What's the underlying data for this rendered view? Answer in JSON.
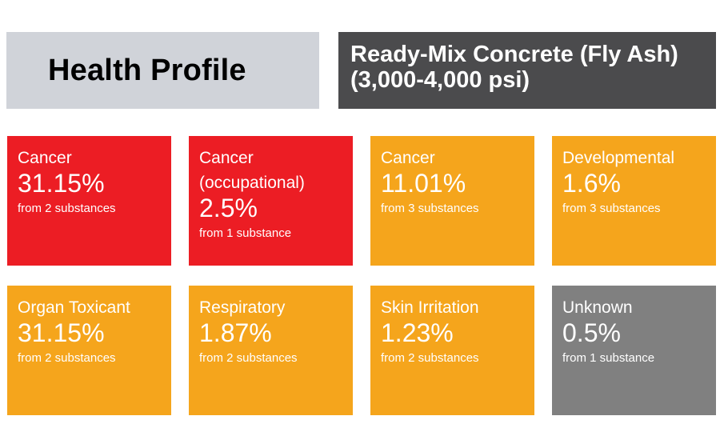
{
  "header": {
    "title": "Health Profile",
    "product_line1": "Ready-Mix Concrete (Fly Ash)",
    "product_line2": "(3,000-4,000 psi)"
  },
  "colors": {
    "red": "#ec1d24",
    "orange": "#f5a51c",
    "gray": "#808080",
    "header_left_bg": "#d0d3d9",
    "header_right_bg": "#4b4b4d"
  },
  "cards": [
    {
      "label": "Cancer",
      "value": "31.15%",
      "source": "from 2 substances",
      "color": "#ec1d24"
    },
    {
      "label": "Cancer",
      "label2": "(occupational)",
      "value": "2.5%",
      "source": "from 1 substance",
      "color": "#ec1d24"
    },
    {
      "label": "Cancer",
      "value": "11.01%",
      "source": "from 3 substances",
      "color": "#f5a51c"
    },
    {
      "label": "Developmental",
      "value": "1.6%",
      "source": "from 3 substances",
      "color": "#f5a51c"
    },
    {
      "label": "Organ Toxicant",
      "value": "31.15%",
      "source": "from 2 substances",
      "color": "#f5a51c"
    },
    {
      "label": "Respiratory",
      "value": "1.87%",
      "source": "from 2 substances",
      "color": "#f5a51c"
    },
    {
      "label": "Skin Irritation",
      "value": "1.23%",
      "source": "from 2 substances",
      "color": "#f5a51c"
    },
    {
      "label": "Unknown",
      "value": "0.5%",
      "source": "from 1 substance",
      "color": "#808080"
    }
  ]
}
